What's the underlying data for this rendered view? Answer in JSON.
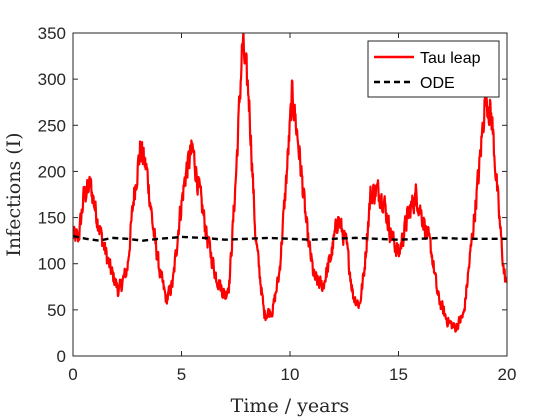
{
  "chart_data": {
    "type": "line",
    "xlabel": "Time / years",
    "ylabel": "Infections (I)",
    "xlim": [
      0,
      20
    ],
    "ylim": [
      0,
      350
    ],
    "xticks": [
      0,
      5,
      10,
      15,
      20
    ],
    "yticks": [
      0,
      50,
      100,
      150,
      200,
      250,
      300,
      350
    ],
    "grid": false,
    "legend_position": "top-right",
    "series": [
      {
        "name": "Tau leap",
        "color": "#ff0000",
        "style": "solid",
        "noisy": true,
        "points": [
          [
            0,
            130
          ],
          [
            0.25,
            128
          ],
          [
            0.5,
            175
          ],
          [
            0.8,
            185
          ],
          [
            1.1,
            150
          ],
          [
            1.4,
            120
          ],
          [
            1.7,
            95
          ],
          [
            2.1,
            70
          ],
          [
            2.5,
            95
          ],
          [
            2.8,
            175
          ],
          [
            3.1,
            225
          ],
          [
            3.4,
            200
          ],
          [
            3.7,
            135
          ],
          [
            4.0,
            90
          ],
          [
            4.3,
            60
          ],
          [
            4.6,
            80
          ],
          [
            4.9,
            150
          ],
          [
            5.2,
            200
          ],
          [
            5.5,
            225
          ],
          [
            5.8,
            180
          ],
          [
            6.2,
            125
          ],
          [
            6.6,
            85
          ],
          [
            7.0,
            65
          ],
          [
            7.2,
            80
          ],
          [
            7.5,
            195
          ],
          [
            7.8,
            340
          ],
          [
            8.1,
            280
          ],
          [
            8.4,
            130
          ],
          [
            8.8,
            45
          ],
          [
            9.2,
            50
          ],
          [
            9.5,
            90
          ],
          [
            9.8,
            185
          ],
          [
            10.1,
            285
          ],
          [
            10.4,
            225
          ],
          [
            10.8,
            130
          ],
          [
            11.1,
            85
          ],
          [
            11.5,
            75
          ],
          [
            11.9,
            110
          ],
          [
            12.2,
            150
          ],
          [
            12.6,
            120
          ],
          [
            12.9,
            65
          ],
          [
            13.2,
            55
          ],
          [
            13.4,
            90
          ],
          [
            13.7,
            175
          ],
          [
            14.0,
            180
          ],
          [
            14.3,
            170
          ],
          [
            14.6,
            135
          ],
          [
            15.0,
            110
          ],
          [
            15.4,
            150
          ],
          [
            15.8,
            175
          ],
          [
            16.1,
            150
          ],
          [
            16.5,
            115
          ],
          [
            16.8,
            65
          ],
          [
            17.2,
            40
          ],
          [
            17.6,
            30
          ],
          [
            18.0,
            45
          ],
          [
            18.3,
            110
          ],
          [
            18.7,
            200
          ],
          [
            19.0,
            285
          ],
          [
            19.3,
            255
          ],
          [
            19.6,
            160
          ],
          [
            19.85,
            90
          ],
          [
            20,
            75
          ]
        ]
      },
      {
        "name": "ODE",
        "color": "#000000",
        "style": "dashed",
        "noisy": false,
        "points": [
          [
            0,
            130
          ],
          [
            0.6,
            127
          ],
          [
            1.2,
            125
          ],
          [
            1.8,
            128
          ],
          [
            2.5,
            127
          ],
          [
            3.2,
            125
          ],
          [
            4.0,
            127
          ],
          [
            5.0,
            129
          ],
          [
            6.0,
            128
          ],
          [
            7.0,
            126
          ],
          [
            8.0,
            127
          ],
          [
            9.0,
            128
          ],
          [
            10.0,
            127
          ],
          [
            11.0,
            126
          ],
          [
            12.0,
            127
          ],
          [
            13.0,
            128
          ],
          [
            14.0,
            127
          ],
          [
            15.0,
            126
          ],
          [
            16.0,
            127
          ],
          [
            17.0,
            128
          ],
          [
            18.0,
            127
          ],
          [
            19.0,
            127
          ],
          [
            20,
            127
          ]
        ]
      }
    ]
  }
}
